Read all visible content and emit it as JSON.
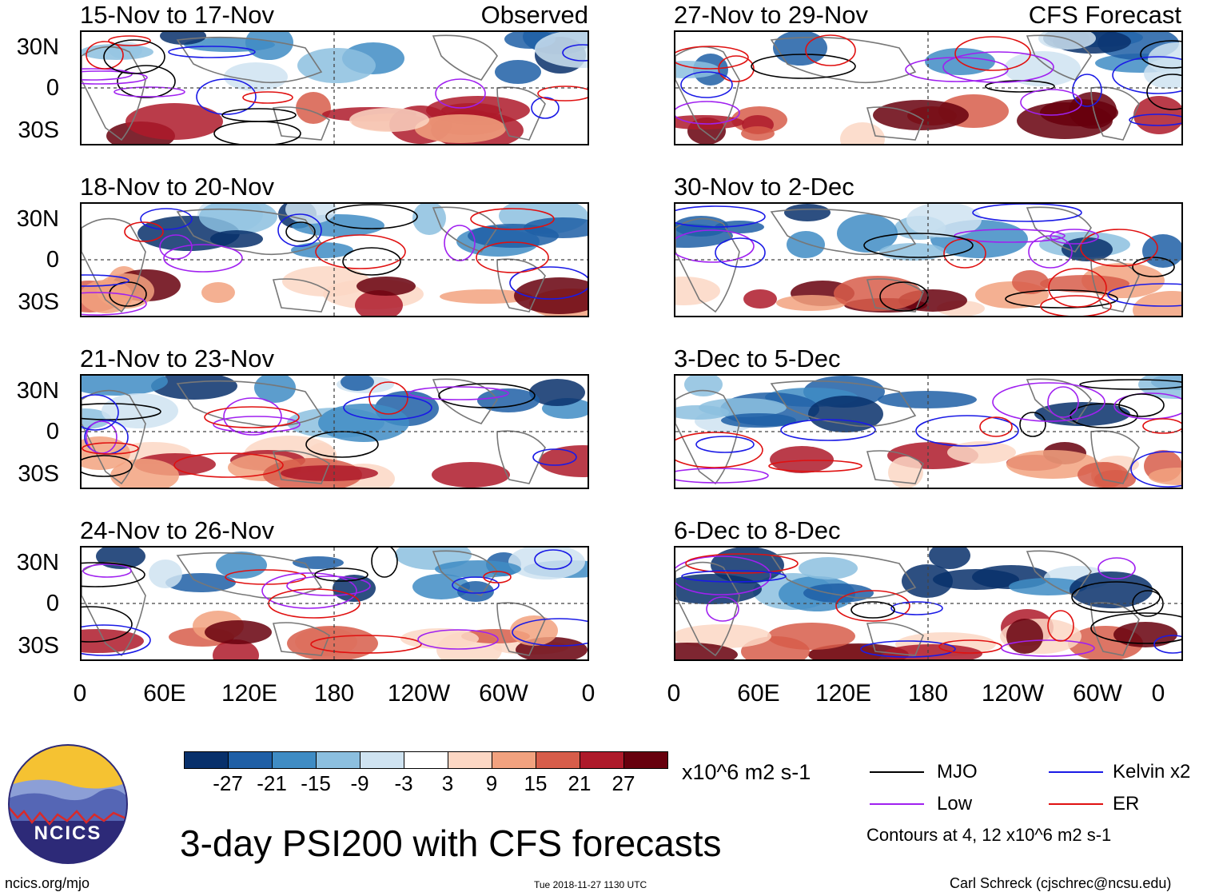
{
  "columns": [
    {
      "tag": "Observed",
      "panels": [
        "15-Nov to 17-Nov",
        "18-Nov to 20-Nov",
        "21-Nov to 23-Nov",
        "24-Nov to 26-Nov"
      ]
    },
    {
      "tag": "CFS Forecast",
      "panels": [
        "27-Nov to 29-Nov",
        "30-Nov to 2-Dec",
        "3-Dec to 5-Dec",
        "6-Dec to 8-Dec"
      ]
    }
  ],
  "lat_labels": [
    "30N",
    "0",
    "30S"
  ],
  "lon_labels": [
    "0",
    "60E",
    "120E",
    "180",
    "120W",
    "60W",
    "0"
  ],
  "colorbar": {
    "colors": [
      "#08306b",
      "#1f5fa6",
      "#3f8cc4",
      "#8cbfdf",
      "#cfe3f1",
      "#ffffff",
      "#fcd7c4",
      "#f2a27f",
      "#d75d4a",
      "#ae1a2a",
      "#67000d"
    ],
    "labels": [
      "-27",
      "-21",
      "-15",
      "-9",
      "-3",
      "3",
      "9",
      "15",
      "21",
      "27"
    ],
    "units": "x10^6 m2 s-1"
  },
  "legend": {
    "items": [
      {
        "label": "MJO",
        "color": "#000000"
      },
      {
        "label": "Kelvin x2",
        "color": "#1a1ae6"
      },
      {
        "label": "Low",
        "color": "#a020f0"
      },
      {
        "label": "ER",
        "color": "#e01010"
      }
    ],
    "note": "Contours at 4, 12 x10^6 m2 s-1"
  },
  "logo": {
    "text": "NCICS"
  },
  "title": "3-day PSI200 with CFS forecasts",
  "footer": {
    "left": "ncics.org/mjo",
    "center": "Tue 2018-11-27 1130 UTC",
    "right": "Carl Schreck (cjschrec@ncsu.edu)"
  }
}
